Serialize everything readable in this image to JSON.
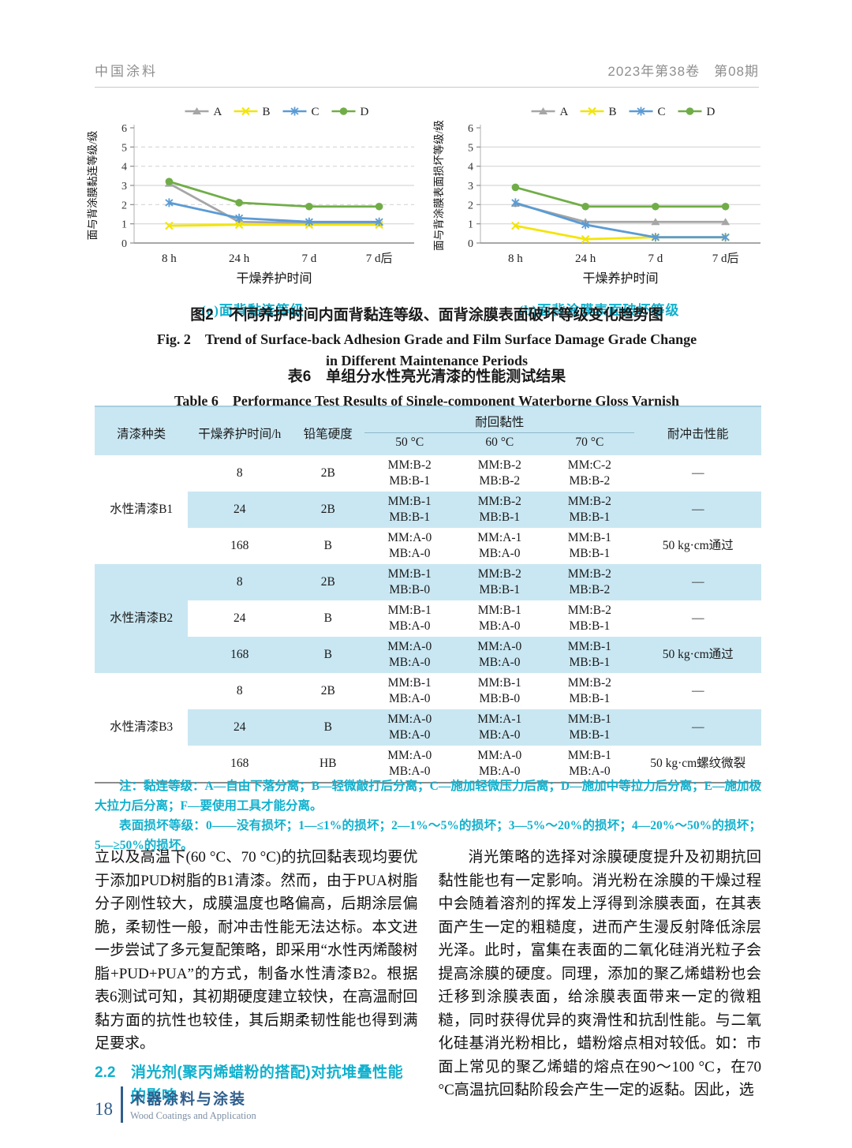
{
  "header": {
    "journal": "中国涂料",
    "issue": "2023年第38卷　第08期"
  },
  "figure": {
    "caption_cn": "图2　不同养护时间内面背黏连等级、面背涂膜表面破坏等级变化趋势图",
    "caption_en": "Fig. 2　Trend of Surface-back Adhesion Grade and Film Surface Damage Grade Change in Different Maintenance Periods"
  },
  "chart_data": [
    {
      "type": "line",
      "panel_label": "(a)面背黏连等级",
      "ylabel": "面与背涂膜黏连等级/级",
      "xlabel": "干燥养护时间",
      "categories": [
        "8 h",
        "24 h",
        "7 d",
        "7 d后"
      ],
      "ylim": [
        0,
        6
      ],
      "yticks": [
        0,
        1,
        2,
        3,
        4,
        5,
        6
      ],
      "dashed_gridlines": [
        2,
        4,
        5
      ],
      "legend_position": "top",
      "series": [
        {
          "name": "A",
          "color": "#a6a6a6",
          "marker": "triangle",
          "values": [
            3.1,
            1.1,
            1.05,
            1.05
          ]
        },
        {
          "name": "B",
          "color": "#f2e50c",
          "marker": "x",
          "values": [
            0.9,
            0.95,
            0.95,
            0.95
          ]
        },
        {
          "name": "C",
          "color": "#5b9bd5",
          "marker": "asterisk",
          "values": [
            2.1,
            1.3,
            1.1,
            1.1
          ]
        },
        {
          "name": "D",
          "color": "#70ad47",
          "marker": "circle",
          "values": [
            3.2,
            2.1,
            1.9,
            1.9
          ]
        }
      ]
    },
    {
      "type": "line",
      "panel_label": "(b)面背涂膜表面破坏等级",
      "ylabel": "面与背涂膜表面损坏等级/级",
      "xlabel": "干燥养护时间",
      "categories": [
        "8 h",
        "24 h",
        "7 d",
        "7 d后"
      ],
      "ylim": [
        0,
        6
      ],
      "yticks": [
        0,
        1,
        2,
        3,
        4,
        5,
        6
      ],
      "dashed_gridlines": [],
      "legend_position": "top",
      "series": [
        {
          "name": "A",
          "color": "#a6a6a6",
          "marker": "triangle",
          "values": [
            2.05,
            1.1,
            1.1,
            1.1
          ]
        },
        {
          "name": "B",
          "color": "#f2e50c",
          "marker": "x",
          "values": [
            0.9,
            0.2,
            0.3,
            0.3
          ]
        },
        {
          "name": "C",
          "color": "#5b9bd5",
          "marker": "asterisk",
          "values": [
            2.1,
            0.95,
            0.3,
            0.3
          ]
        },
        {
          "name": "D",
          "color": "#70ad47",
          "marker": "circle",
          "values": [
            2.9,
            1.9,
            1.9,
            1.9
          ]
        }
      ]
    }
  ],
  "table": {
    "title_cn": "表6　单组分水性亮光清漆的性能测试结果",
    "title_en": "Table 6　Performance Test Results of Single-component Waterborne Gloss Varnish",
    "col_headers": {
      "type": "清漆种类",
      "time": "干燥养护时间/h",
      "hardness": "铅笔硬度",
      "tack": "耐回黏性",
      "temps": [
        "50 °C",
        "60 °C",
        "70 °C"
      ],
      "impact": "耐冲击性能"
    },
    "groups": [
      {
        "name": "水性清漆B1",
        "rows": [
          {
            "time": "8",
            "hardness": "2B",
            "t50": [
              "MM:B-2",
              "MB:B-1"
            ],
            "t60": [
              "MM:B-2",
              "MB:B-2"
            ],
            "t70": [
              "MM:C-2",
              "MB:B-2"
            ],
            "impact": "—"
          },
          {
            "time": "24",
            "hardness": "2B",
            "t50": [
              "MM:B-1",
              "MB:B-1"
            ],
            "t60": [
              "MM:B-2",
              "MB:B-1"
            ],
            "t70": [
              "MM:B-2",
              "MB:B-1"
            ],
            "impact": "—"
          },
          {
            "time": "168",
            "hardness": "B",
            "t50": [
              "MM:A-0",
              "MB:A-0"
            ],
            "t60": [
              "MM:A-1",
              "MB:A-0"
            ],
            "t70": [
              "MM:B-1",
              "MB:B-1"
            ],
            "impact": "50 kg·cm通过"
          }
        ]
      },
      {
        "name": "水性清漆B2",
        "rows": [
          {
            "time": "8",
            "hardness": "2B",
            "t50": [
              "MM:B-1",
              "MB:B-0"
            ],
            "t60": [
              "MM:B-2",
              "MB:B-1"
            ],
            "t70": [
              "MM:B-2",
              "MB:B-2"
            ],
            "impact": "—"
          },
          {
            "time": "24",
            "hardness": "B",
            "t50": [
              "MM:B-1",
              "MB:A-0"
            ],
            "t60": [
              "MM:B-1",
              "MB:A-0"
            ],
            "t70": [
              "MM:B-2",
              "MB:B-1"
            ],
            "impact": "—"
          },
          {
            "time": "168",
            "hardness": "B",
            "t50": [
              "MM:A-0",
              "MB:A-0"
            ],
            "t60": [
              "MM:A-0",
              "MB:A-0"
            ],
            "t70": [
              "MM:B-1",
              "MB:B-1"
            ],
            "impact": "50 kg·cm通过"
          }
        ]
      },
      {
        "name": "水性清漆B3",
        "rows": [
          {
            "time": "8",
            "hardness": "2B",
            "t50": [
              "MM:B-1",
              "MB:A-0"
            ],
            "t60": [
              "MM:B-1",
              "MB:B-0"
            ],
            "t70": [
              "MM:B-2",
              "MB:B-1"
            ],
            "impact": "—"
          },
          {
            "time": "24",
            "hardness": "B",
            "t50": [
              "MM:A-0",
              "MB:A-0"
            ],
            "t60": [
              "MM:A-1",
              "MB:A-0"
            ],
            "t70": [
              "MM:B-1",
              "MB:B-1"
            ],
            "impact": "—"
          },
          {
            "time": "168",
            "hardness": "HB",
            "t50": [
              "MM:A-0",
              "MB:A-0"
            ],
            "t60": [
              "MM:A-0",
              "MB:A-0"
            ],
            "t70": [
              "MM:B-1",
              "MB:A-0"
            ],
            "impact": "50 kg·cm螺纹微裂"
          }
        ]
      }
    ],
    "notes": [
      "注：黏连等级：A—自由下落分离；B—轻微敲打后分离；C—施加轻微压力后离；D—施加中等拉力后分离；E—施加极大拉力后分离；F—要使用工具才能分离。",
      "表面损坏等级：0——没有损坏；1—≤1%的损坏；2—1%～5%的损坏；3—5%～20%的损坏；4—20%～50%的损坏；5—≥50%的损坏。"
    ]
  },
  "body": {
    "left_paragraph": "立以及高温下(60 °C、70 °C)的抗回黏表现均要优于添加PUD树脂的B1清漆。然而，由于PUA树脂分子刚性较大，成膜温度也略偏高，后期涂层偏脆，柔韧性一般，耐冲击性能无法达标。本文进一步尝试了多元复配策略，即采用“水性丙烯酸树脂+PUD+PUA”的方式，制备水性清漆B2。根据表6测试可知，其初期硬度建立较快，在高温耐回黏方面的抗性也较佳，其后期柔韧性能也得到满足要求。",
    "section_number": "2.2",
    "section_title": "消光剂(聚丙烯蜡粉的搭配)对抗堆叠性能的影响",
    "right_paragraph": "消光策略的选择对涂膜硬度提升及初期抗回黏性能也有一定影响。消光粉在涂膜的干燥过程中会随着溶剂的挥发上浮得到涂膜表面，在其表面产生一定的粗糙度，进而产生漫反射降低涂层光泽。此时，富集在表面的二氧化硅消光粒子会提高涂膜的硬度。同理，添加的聚乙烯蜡粉也会迁移到涂膜表面，给涂膜表面带来一定的微粗糙，同时获得优异的爽滑性和抗刮性能。与二氧化硅基消光粉相比，蜡粉熔点相对较低。如：市面上常见的聚乙烯蜡的熔点在90～100 °C，在70 °C高温抗回黏阶段会产生一定的返黏。因此，选"
  },
  "footer": {
    "page_number": "18",
    "title_cn": "木器涂料与涂装",
    "title_en": "Wood Coatings and Application"
  }
}
